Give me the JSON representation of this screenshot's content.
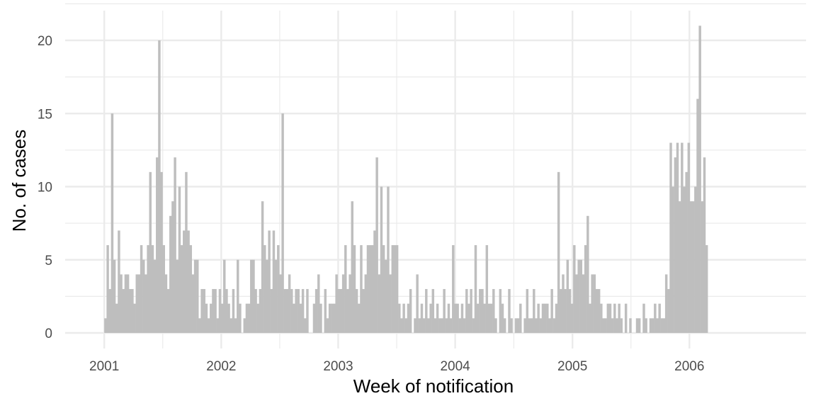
{
  "chart_data": {
    "type": "bar",
    "xlabel": "Week of notification",
    "ylabel": "No. of cases",
    "x_unit": "week starting date",
    "x_start": "2001-01-01",
    "x_step_days": 7,
    "xlim": [
      "2000-09-01",
      "2006-12-31"
    ],
    "ylim": [
      0,
      22
    ],
    "x_ticks": [
      {
        "label": "2001",
        "date": "2001-01-01"
      },
      {
        "label": "2002",
        "date": "2002-01-01"
      },
      {
        "label": "2003",
        "date": "2003-01-01"
      },
      {
        "label": "2004",
        "date": "2004-01-01"
      },
      {
        "label": "2005",
        "date": "2005-01-01"
      },
      {
        "label": "2006",
        "date": "2006-01-01"
      }
    ],
    "y_ticks": [
      0,
      5,
      10,
      15,
      20
    ],
    "grid": true,
    "bar_color": "#bebebe",
    "values": [
      1,
      6,
      3,
      15,
      5,
      2,
      7,
      4,
      3,
      4,
      4,
      3,
      3,
      2,
      4,
      4,
      6,
      5,
      4,
      6,
      11,
      6,
      5,
      12,
      20,
      11,
      6,
      4,
      3,
      8,
      9,
      12,
      5,
      10,
      6,
      7,
      11,
      7,
      6,
      4,
      5,
      5,
      1,
      3,
      3,
      2,
      1,
      2,
      3,
      3,
      1,
      3,
      2,
      5,
      3,
      2,
      1,
      3,
      1,
      5,
      2,
      0,
      1,
      2,
      2,
      5,
      5,
      3,
      2,
      3,
      9,
      6,
      5,
      7,
      3,
      7,
      5,
      6,
      4,
      15,
      3,
      3,
      4,
      3,
      2,
      3,
      3,
      2,
      3,
      1,
      3,
      0,
      0,
      2,
      3,
      4,
      2,
      0,
      3,
      1,
      2,
      2,
      2,
      4,
      3,
      3,
      4,
      6,
      3,
      4,
      9,
      6,
      3,
      2,
      6,
      3,
      4,
      6,
      6,
      6,
      7,
      12,
      4,
      10,
      6,
      5,
      10,
      4,
      6,
      6,
      6,
      2,
      1,
      2,
      1,
      2,
      3,
      0,
      1,
      4,
      1,
      2,
      1,
      3,
      1,
      2,
      3,
      1,
      2,
      1,
      1,
      3,
      1,
      2,
      1,
      6,
      2,
      2,
      1,
      2,
      1,
      3,
      2,
      3,
      1,
      6,
      2,
      3,
      3,
      2,
      6,
      2,
      2,
      3,
      1,
      0,
      3,
      2,
      1,
      0,
      3,
      1,
      0,
      1,
      1,
      2,
      0,
      1,
      3,
      1,
      1,
      3,
      1,
      2,
      1,
      2,
      2,
      2,
      1,
      3,
      1,
      2,
      11,
      3,
      4,
      3,
      5,
      3,
      2,
      6,
      4,
      5,
      5,
      4,
      6,
      8,
      2,
      4,
      4,
      3,
      3,
      2,
      1,
      1,
      2,
      2,
      1,
      2,
      1,
      2,
      1,
      0,
      2,
      0,
      1,
      0,
      0,
      1,
      1,
      0,
      2,
      1,
      0,
      1,
      1,
      2,
      1,
      2,
      1,
      1,
      4,
      3,
      13,
      10,
      12,
      13,
      9,
      13,
      10,
      11,
      13,
      9,
      9,
      10,
      16,
      21,
      9,
      12,
      6
    ]
  }
}
